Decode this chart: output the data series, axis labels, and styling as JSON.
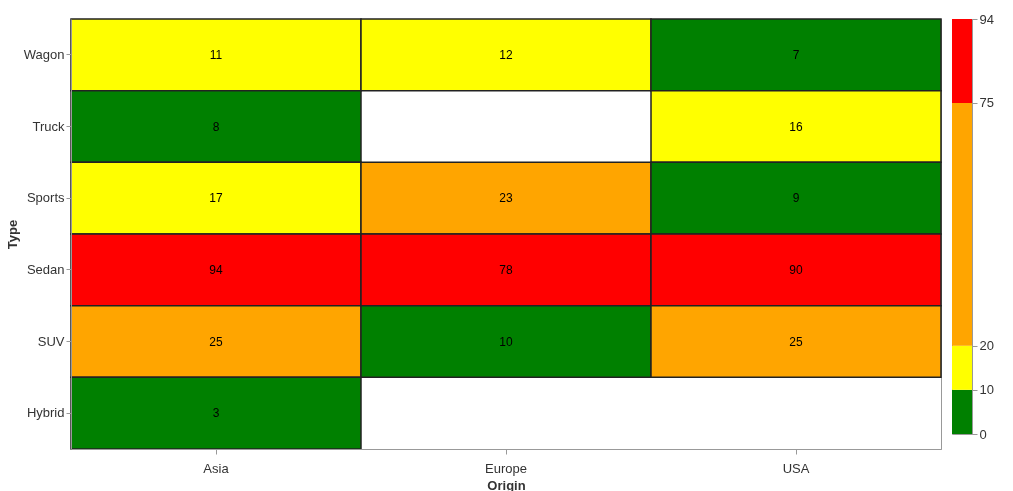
{
  "chart_data": {
    "type": "heatmap",
    "xlabel": "Origin",
    "ylabel": "Type",
    "categories": [
      "Asia",
      "Europe",
      "USA"
    ],
    "y_categories": [
      "Wagon",
      "Truck",
      "Sports",
      "Sedan",
      "SUV",
      "Hybrid"
    ],
    "cells": [
      [
        11,
        12,
        7
      ],
      [
        8,
        null,
        16
      ],
      [
        17,
        23,
        9
      ],
      [
        94,
        78,
        90
      ],
      [
        25,
        10,
        25
      ],
      [
        3,
        null,
        null
      ]
    ],
    "data_labels": true,
    "clim": [
      0,
      94
    ],
    "cticks": [
      0,
      10,
      20,
      75,
      94
    ],
    "colors": [
      "#008000",
      "#ffff00",
      "#ffa500",
      "#ff0000"
    ]
  }
}
